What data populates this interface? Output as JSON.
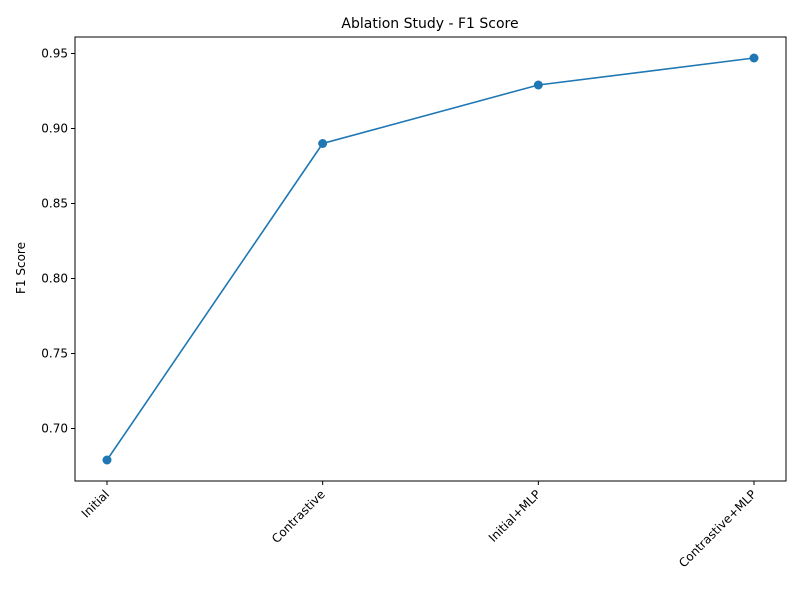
{
  "chart_data": {
    "type": "line",
    "title": "Ablation Study - F1 Score",
    "xlabel": "",
    "ylabel": "F1 Score",
    "categories": [
      "Initial",
      "Contrastive",
      "Initial+MLP",
      "Contrastive+MLP"
    ],
    "series": [
      {
        "values": [
          0.679,
          0.89,
          0.929,
          0.947
        ],
        "color": "#1f77b4"
      }
    ],
    "ylim": [
      0.665,
      0.961
    ],
    "yticks": [
      "0.70",
      "0.75",
      "0.80",
      "0.85",
      "0.90",
      "0.95"
    ],
    "grid": false,
    "x_tick_rotation": "45deg"
  }
}
